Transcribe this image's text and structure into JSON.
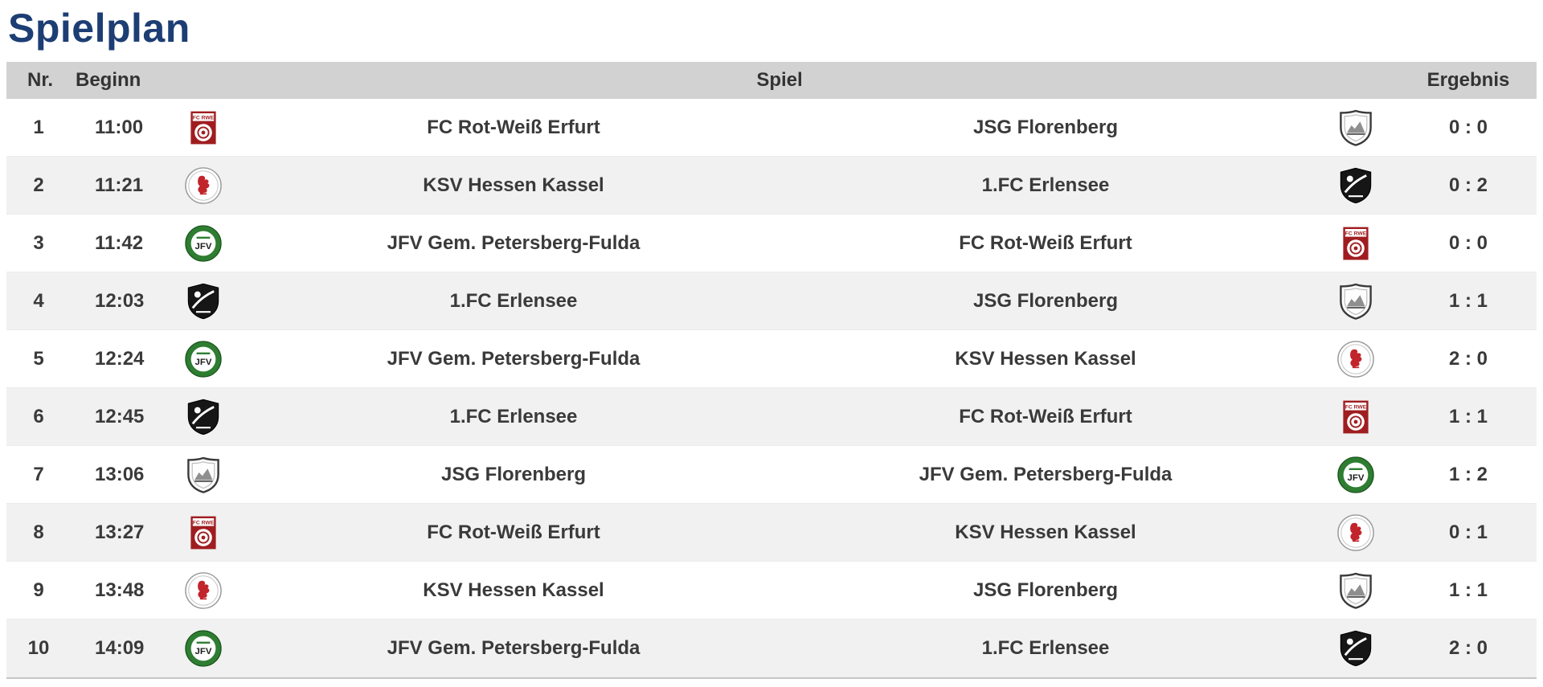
{
  "page": {
    "title": "Spielplan"
  },
  "table": {
    "headers": {
      "nr": "Nr.",
      "beginn": "Beginn",
      "spiel": "Spiel",
      "ergebnis": "Ergebnis"
    }
  },
  "teams": {
    "rwe": {
      "name": "FC Rot-Weiß Erfurt",
      "logo": "rwe-erfurt-crest-icon"
    },
    "florenberg": {
      "name": "JSG Florenberg",
      "logo": "jsg-florenberg-crest-icon"
    },
    "kassel": {
      "name": "KSV Hessen Kassel",
      "logo": "ksv-hessen-kassel-crest-icon"
    },
    "erlensee": {
      "name": "1.FC Erlensee",
      "logo": "fc-erlensee-crest-icon"
    },
    "jfv": {
      "name": "JFV Gem. Petersberg-Fulda",
      "logo": "jfv-petersberg-fulda-crest-icon"
    }
  },
  "matches": [
    {
      "nr": "1",
      "time": "11:00",
      "home": "FC Rot-Weiß Erfurt",
      "home_logo": "rwe",
      "away": "JSG Florenberg",
      "away_logo": "florenberg",
      "score": "0 : 0"
    },
    {
      "nr": "2",
      "time": "11:21",
      "home": "KSV Hessen Kassel",
      "home_logo": "kassel",
      "away": "1.FC Erlensee",
      "away_logo": "erlensee",
      "score": "0 : 2"
    },
    {
      "nr": "3",
      "time": "11:42",
      "home": "JFV Gem. Petersberg-Fulda",
      "home_logo": "jfv",
      "away": "FC Rot-Weiß Erfurt",
      "away_logo": "rwe",
      "score": "0 : 0"
    },
    {
      "nr": "4",
      "time": "12:03",
      "home": "1.FC Erlensee",
      "home_logo": "erlensee",
      "away": "JSG Florenberg",
      "away_logo": "florenberg",
      "score": "1 : 1"
    },
    {
      "nr": "5",
      "time": "12:24",
      "home": "JFV Gem. Petersberg-Fulda",
      "home_logo": "jfv",
      "away": "KSV Hessen Kassel",
      "away_logo": "kassel",
      "score": "2 : 0"
    },
    {
      "nr": "6",
      "time": "12:45",
      "home": "1.FC Erlensee",
      "home_logo": "erlensee",
      "away": "FC Rot-Weiß Erfurt",
      "away_logo": "rwe",
      "score": "1 : 1"
    },
    {
      "nr": "7",
      "time": "13:06",
      "home": "JSG Florenberg",
      "home_logo": "florenberg",
      "away": "JFV Gem. Petersberg-Fulda",
      "away_logo": "jfv",
      "score": "1 : 2"
    },
    {
      "nr": "8",
      "time": "13:27",
      "home": "FC Rot-Weiß Erfurt",
      "home_logo": "rwe",
      "away": "KSV Hessen Kassel",
      "away_logo": "kassel",
      "score": "0 : 1"
    },
    {
      "nr": "9",
      "time": "13:48",
      "home": "KSV Hessen Kassel",
      "home_logo": "kassel",
      "away": "JSG Florenberg",
      "away_logo": "florenberg",
      "score": "1 : 1"
    },
    {
      "nr": "10",
      "time": "14:09",
      "home": "JFV Gem. Petersberg-Fulda",
      "home_logo": "jfv",
      "away": "1.FC Erlensee",
      "away_logo": "erlensee",
      "score": "2 : 0"
    }
  ],
  "colors": {
    "title": "#1d3e74",
    "header_bg": "#d2d2d2",
    "row_alt_bg": "#f1f1f1",
    "text": "#3a3a3a"
  }
}
